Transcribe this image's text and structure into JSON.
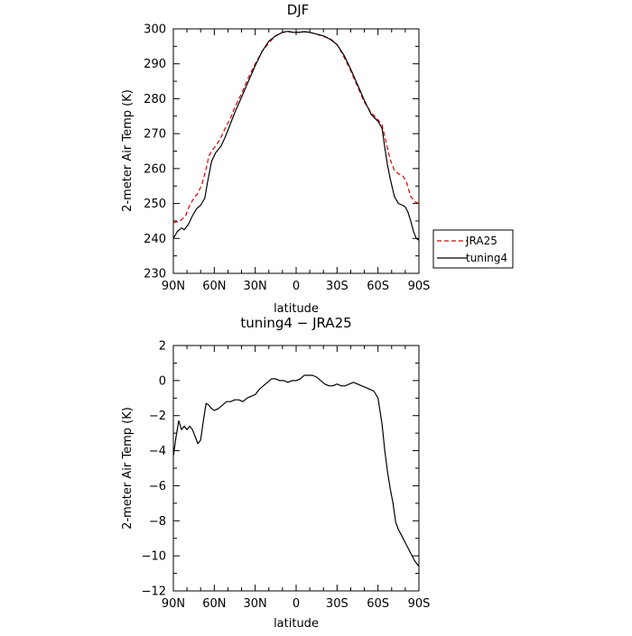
{
  "chart_data": [
    {
      "type": "line",
      "title": "DJF",
      "xlabel": "latitude",
      "ylabel": "2-meter Air Temp (K)",
      "xlim": [
        -90,
        90
      ],
      "ylim": [
        230,
        300
      ],
      "x_ticks": [
        -90,
        -60,
        -30,
        0,
        30,
        60,
        90
      ],
      "x_tick_labels": [
        "90N",
        "60N",
        "30N",
        "0",
        "30S",
        "60S",
        "90S"
      ],
      "y_ticks": [
        230,
        240,
        250,
        260,
        270,
        280,
        290,
        300
      ],
      "grid": false,
      "legend": "right, outside plot",
      "series": [
        {
          "name": "JRA25",
          "color": "#e00000",
          "style": "dashed",
          "x": [
            -90,
            -85,
            -81,
            -78,
            -75,
            -72,
            -69,
            -66,
            -64,
            -62,
            -58,
            -55,
            -52,
            -48,
            -45,
            -40,
            -35,
            -30,
            -25,
            -20,
            -15,
            -10,
            -6,
            -2,
            2,
            6,
            10,
            15,
            20,
            25,
            30,
            35,
            40,
            45,
            50,
            55,
            60,
            63,
            66,
            69,
            72,
            75,
            78,
            81,
            84,
            87,
            90
          ],
          "values": [
            244.5,
            245.0,
            246.5,
            249.5,
            251.5,
            253.0,
            255.5,
            260.0,
            263.5,
            265.0,
            267.0,
            269.0,
            271.5,
            274.5,
            277.5,
            281.5,
            286.0,
            290.0,
            293.5,
            296.0,
            298.0,
            299.0,
            299.2,
            299.0,
            299.0,
            299.2,
            299.0,
            298.5,
            297.8,
            297.2,
            295.5,
            292.0,
            288.0,
            283.5,
            279.0,
            276.0,
            274.0,
            272.5,
            267.5,
            262.5,
            259.5,
            258.5,
            258.0,
            256.0,
            252.0,
            250.5,
            250.0
          ]
        },
        {
          "name": "tuning4",
          "color": "#000000",
          "style": "solid",
          "x": [
            -90,
            -87,
            -84,
            -82,
            -79,
            -76,
            -73,
            -70,
            -67,
            -65,
            -62,
            -59,
            -55,
            -52,
            -48,
            -45,
            -40,
            -35,
            -30,
            -25,
            -20,
            -15,
            -10,
            -6,
            -2,
            2,
            6,
            10,
            15,
            20,
            25,
            30,
            35,
            40,
            45,
            50,
            55,
            60,
            63,
            65,
            67,
            69,
            72,
            75,
            78,
            80,
            82,
            84,
            86,
            88,
            90
          ],
          "values": [
            240.0,
            242.0,
            243.0,
            242.5,
            244.0,
            246.5,
            248.5,
            249.5,
            251.5,
            256.0,
            262.0,
            264.5,
            266.5,
            269.0,
            273.0,
            276.0,
            280.5,
            285.0,
            289.5,
            293.5,
            296.5,
            298.0,
            299.0,
            299.3,
            299.0,
            299.0,
            299.2,
            299.0,
            298.5,
            298.0,
            297.0,
            295.5,
            292.5,
            288.5,
            284.0,
            279.5,
            275.5,
            273.5,
            271.5,
            266.0,
            261.0,
            257.0,
            252.0,
            250.0,
            249.5,
            249.0,
            247.5,
            245.0,
            242.0,
            240.0,
            239.5
          ]
        }
      ]
    },
    {
      "type": "line",
      "title": "tuning4 − JRA25",
      "xlabel": "latitude",
      "ylabel": "2-meter Air Temp (K)",
      "xlim": [
        -90,
        90
      ],
      "ylim": [
        -12,
        2
      ],
      "x_ticks": [
        -90,
        -60,
        -30,
        0,
        30,
        60,
        90
      ],
      "x_tick_labels": [
        "90N",
        "60N",
        "30N",
        "0",
        "30S",
        "60S",
        "90S"
      ],
      "y_ticks": [
        -12,
        -10,
        -8,
        -6,
        -4,
        -2,
        0,
        2
      ],
      "y_tick_labels": [
        "−12",
        "−10",
        "−8",
        "−6",
        "−4",
        "−2",
        "0",
        "2"
      ],
      "grid": false,
      "series": [
        {
          "color": "#000000",
          "style": "solid",
          "x": [
            -90,
            -88,
            -86,
            -84,
            -82,
            -80,
            -78,
            -76,
            -74,
            -72,
            -70,
            -68,
            -66,
            -64,
            -62,
            -60,
            -57,
            -54,
            -51,
            -48,
            -45,
            -42,
            -39,
            -36,
            -33,
            -30,
            -27,
            -24,
            -21,
            -18,
            -15,
            -12,
            -9,
            -6,
            -3,
            0,
            3,
            6,
            9,
            12,
            15,
            18,
            21,
            24,
            27,
            30,
            33,
            36,
            39,
            42,
            45,
            48,
            51,
            54,
            57,
            60,
            63,
            65,
            67,
            69,
            71,
            73,
            75,
            77,
            79,
            81,
            83,
            85,
            87,
            89,
            90
          ],
          "values": [
            -4.3,
            -3.2,
            -2.3,
            -2.8,
            -2.6,
            -2.8,
            -2.6,
            -2.8,
            -3.2,
            -3.6,
            -3.4,
            -2.3,
            -1.3,
            -1.4,
            -1.6,
            -1.7,
            -1.6,
            -1.4,
            -1.2,
            -1.2,
            -1.1,
            -1.1,
            -1.2,
            -1.0,
            -0.9,
            -0.8,
            -0.5,
            -0.3,
            -0.1,
            0.1,
            0.1,
            0.0,
            0.0,
            -0.1,
            0.0,
            0.0,
            0.1,
            0.3,
            0.3,
            0.3,
            0.2,
            0.0,
            -0.2,
            -0.3,
            -0.3,
            -0.2,
            -0.3,
            -0.3,
            -0.2,
            -0.1,
            -0.2,
            -0.3,
            -0.4,
            -0.5,
            -0.6,
            -1.0,
            -2.5,
            -4.0,
            -5.2,
            -6.2,
            -7.0,
            -8.1,
            -8.5,
            -8.8,
            -9.1,
            -9.4,
            -9.7,
            -10.0,
            -10.3,
            -10.5,
            -10.6
          ]
        }
      ]
    }
  ]
}
